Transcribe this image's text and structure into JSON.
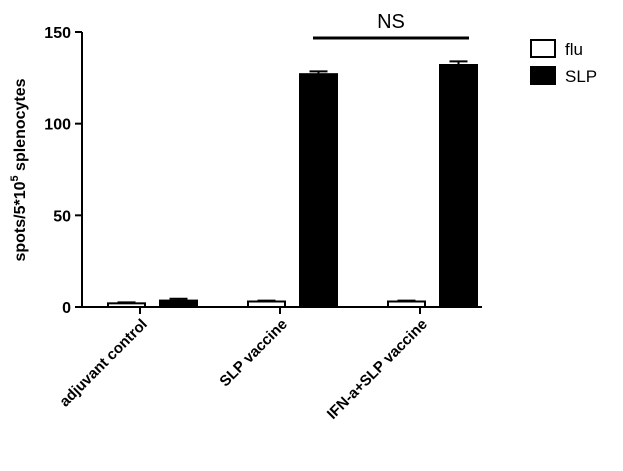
{
  "chart_data": {
    "type": "bar",
    "y_label_parts": [
      "spots/5*10",
      "5",
      " splenocytes"
    ],
    "annotation": "NS",
    "categories": [
      "adjuvant control",
      "SLP vaccine",
      "IFN-a+SLP vaccine"
    ],
    "series": [
      {
        "name": "flu",
        "color": "#ffffff",
        "values": [
          2,
          3,
          3
        ],
        "errors": [
          0.5,
          0.5,
          0.5
        ]
      },
      {
        "name": "SLP",
        "color": "#000000",
        "values": [
          3.5,
          127,
          132
        ],
        "errors": [
          1,
          1.5,
          2
        ]
      }
    ],
    "ylim": [
      0,
      150
    ],
    "yticks": [
      0,
      50,
      100,
      150
    ]
  }
}
